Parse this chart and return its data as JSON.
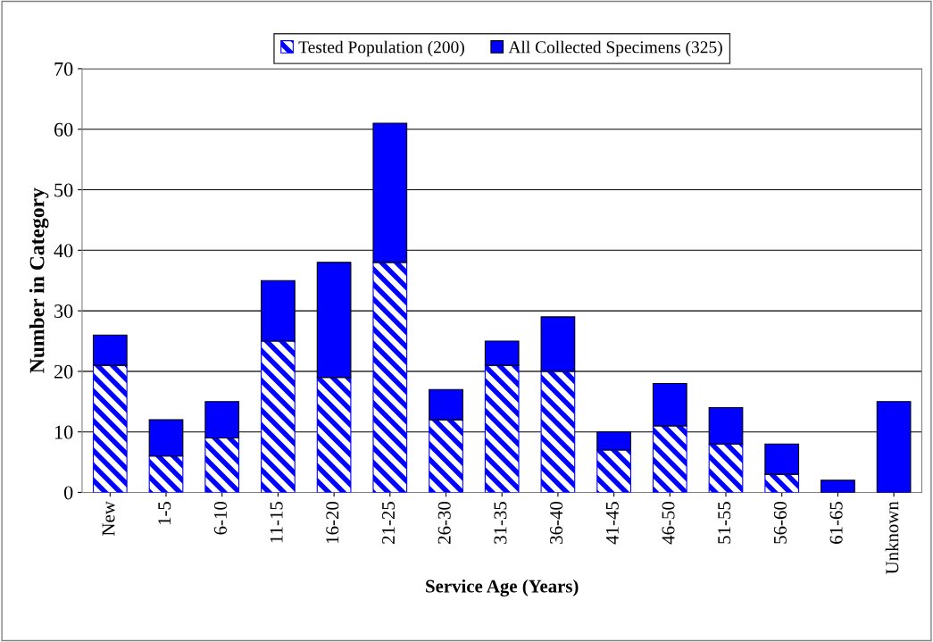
{
  "chart_data": {
    "type": "bar",
    "stacked": true,
    "xlabel": "Service Age (Years)",
    "ylabel": "Number in Category",
    "categories": [
      "New",
      "1-5",
      "6-10",
      "11-15",
      "16-20",
      "21-25",
      "26-30",
      "31-35",
      "36-40",
      "41-45",
      "46-50",
      "51-55",
      "56-60",
      "61-65",
      "Unknown"
    ],
    "series": [
      {
        "name": "Tested Population (200)",
        "color": "#0000ff",
        "values": [
          21,
          6,
          9,
          25,
          19,
          38,
          12,
          21,
          20,
          7,
          11,
          8,
          3,
          0,
          0
        ]
      },
      {
        "name": "All Collected Specimens (325)",
        "color": "#0000ff",
        "values": [
          5,
          6,
          6,
          10,
          19,
          23,
          5,
          4,
          9,
          3,
          7,
          6,
          5,
          2,
          15
        ]
      }
    ],
    "ylim": [
      0,
      70
    ],
    "yticks": [
      0,
      10,
      20,
      30,
      40,
      50,
      60,
      70
    ],
    "grid": "y",
    "legend": "top"
  }
}
